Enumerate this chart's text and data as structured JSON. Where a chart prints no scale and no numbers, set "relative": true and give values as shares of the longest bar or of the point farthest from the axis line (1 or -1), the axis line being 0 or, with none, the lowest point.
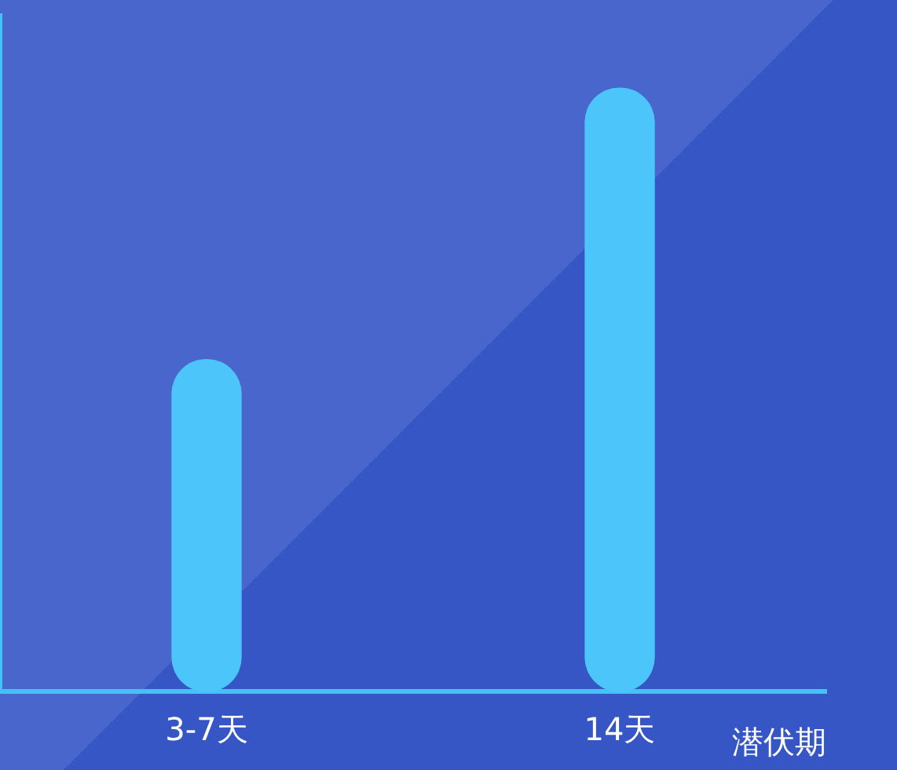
{
  "chart_data": {
    "type": "bar",
    "xlabel": "潜伏期",
    "categories": [
      "3-7天",
      "14天"
    ],
    "values": [
      0.55,
      1
    ],
    "color": "#4cc6fa",
    "relative": true
  }
}
